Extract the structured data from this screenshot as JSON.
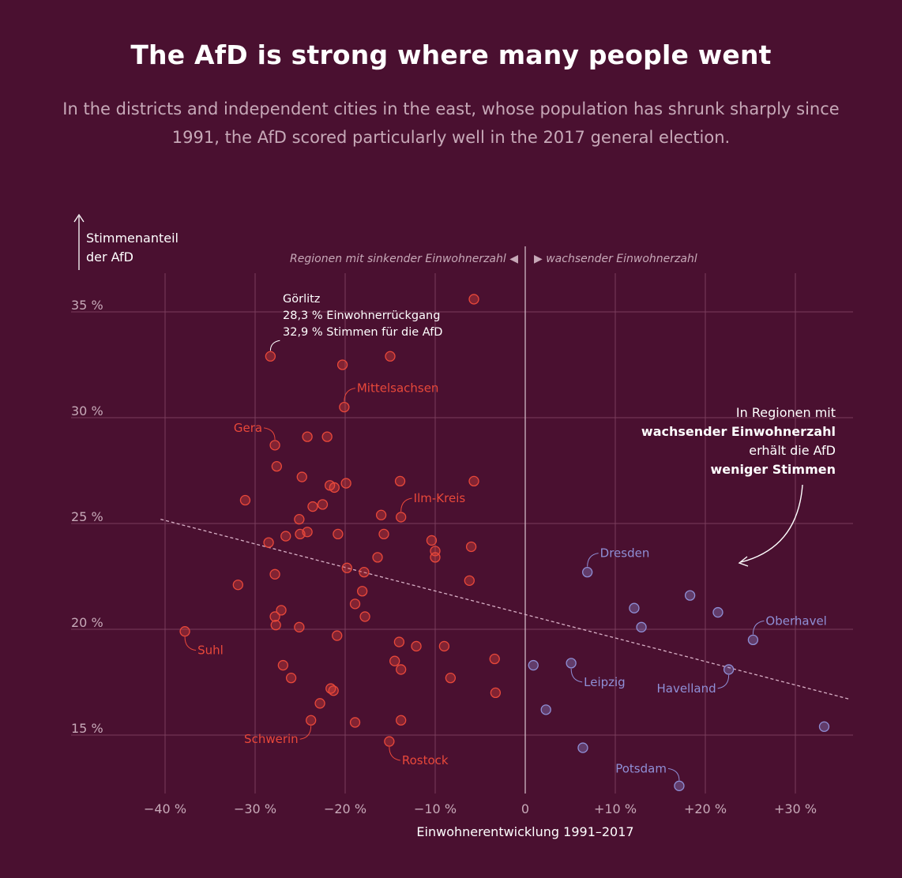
{
  "title": "The AfD is strong where many people went",
  "subtitle": "In the districts and independent cities in the east, whose population has shrunk sharply since 1991, the AfD scored particularly well in the 2017 general election.",
  "colors": {
    "background": "#4a1030",
    "shrinking": "#e8483a",
    "growing": "#8f8fd6",
    "grid": "#7a3d5c",
    "text": "#f0e6ea"
  },
  "chart_data": {
    "type": "scatter",
    "xlabel": "Einwohnerentwicklung 1991–2017",
    "ylabel_line1": "Stimmenanteil",
    "ylabel_line2": "der AfD",
    "xlim": [
      -42,
      36
    ],
    "ylim": [
      12,
      36.5
    ],
    "x_ticks": [
      -40,
      -30,
      -20,
      -10,
      0,
      10,
      20,
      30
    ],
    "x_tick_labels": [
      "−40 %",
      "−30 %",
      "−20 %",
      "−10 %",
      "0",
      "+10 %",
      "+20 %",
      "+30 %"
    ],
    "y_ticks": [
      15,
      20,
      25,
      30,
      35
    ],
    "y_tick_labels": [
      "15 %",
      "20 %",
      "25 %",
      "30 %",
      "35 %"
    ],
    "grid": true,
    "header_left": "Regionen mit sinkender Einwohnerzahl ◀",
    "header_right": "▶ wachsender Einwohnerzahl",
    "trendline": {
      "x": [
        -40.5,
        36
      ],
      "y": [
        25.2,
        16.7
      ]
    },
    "series": [
      {
        "group": "shrinking",
        "points": [
          [
            -5.7,
            35.6
          ],
          [
            -28.3,
            32.9
          ],
          [
            -15.0,
            32.9
          ],
          [
            -20.3,
            32.5
          ],
          [
            -20.1,
            30.5
          ],
          [
            -27.8,
            28.7
          ],
          [
            -24.2,
            29.1
          ],
          [
            -22.0,
            29.1
          ],
          [
            -27.6,
            27.7
          ],
          [
            -24.8,
            27.2
          ],
          [
            -21.7,
            26.8
          ],
          [
            -21.2,
            26.7
          ],
          [
            -19.9,
            26.9
          ],
          [
            -13.9,
            27.0
          ],
          [
            -5.7,
            27.0
          ],
          [
            -31.1,
            26.1
          ],
          [
            -23.6,
            25.8
          ],
          [
            -22.5,
            25.9
          ],
          [
            -16.0,
            25.4
          ],
          [
            -13.8,
            25.3
          ],
          [
            -25.1,
            25.2
          ],
          [
            -26.6,
            24.4
          ],
          [
            -25.0,
            24.5
          ],
          [
            -24.2,
            24.6
          ],
          [
            -20.8,
            24.5
          ],
          [
            -15.7,
            24.5
          ],
          [
            -10.4,
            24.2
          ],
          [
            -28.5,
            24.1
          ],
          [
            -10.0,
            23.7
          ],
          [
            -10.0,
            23.4
          ],
          [
            -16.4,
            23.4
          ],
          [
            -6.0,
            23.9
          ],
          [
            -19.8,
            22.9
          ],
          [
            -17.9,
            22.7
          ],
          [
            -27.8,
            22.6
          ],
          [
            -6.2,
            22.3
          ],
          [
            -31.9,
            22.1
          ],
          [
            -18.1,
            21.8
          ],
          [
            -18.9,
            21.2
          ],
          [
            -27.1,
            20.9
          ],
          [
            -27.8,
            20.6
          ],
          [
            -17.8,
            20.6
          ],
          [
            -27.7,
            20.2
          ],
          [
            -25.1,
            20.1
          ],
          [
            -37.8,
            19.9
          ],
          [
            -20.9,
            19.7
          ],
          [
            -14.0,
            19.4
          ],
          [
            -12.1,
            19.2
          ],
          [
            -9.0,
            19.2
          ],
          [
            -26.9,
            18.3
          ],
          [
            -14.5,
            18.5
          ],
          [
            -13.8,
            18.1
          ],
          [
            -3.4,
            18.6
          ],
          [
            -26.0,
            17.7
          ],
          [
            -8.3,
            17.7
          ],
          [
            -21.6,
            17.2
          ],
          [
            -21.3,
            17.1
          ],
          [
            -3.3,
            17.0
          ],
          [
            -22.8,
            16.5
          ],
          [
            -23.8,
            15.7
          ],
          [
            -18.9,
            15.6
          ],
          [
            -13.8,
            15.7
          ],
          [
            -15.1,
            14.7
          ]
        ]
      },
      {
        "group": "growing",
        "points": [
          [
            6.9,
            22.7
          ],
          [
            18.3,
            21.6
          ],
          [
            12.1,
            21.0
          ],
          [
            21.4,
            20.8
          ],
          [
            12.9,
            20.1
          ],
          [
            25.3,
            19.5
          ],
          [
            22.6,
            18.1
          ],
          [
            0.9,
            18.3
          ],
          [
            5.1,
            18.4
          ],
          [
            2.3,
            16.2
          ],
          [
            6.4,
            14.4
          ],
          [
            33.2,
            15.4
          ],
          [
            17.1,
            12.6
          ]
        ]
      }
    ],
    "labels": [
      {
        "name": "Suhl",
        "group": "shrinking",
        "x": -37.8,
        "y": 19.9,
        "side": "below-right"
      },
      {
        "name": "Gera",
        "group": "shrinking",
        "x": -27.8,
        "y": 28.7,
        "side": "above-left"
      },
      {
        "name": "Mittelsachsen",
        "group": "shrinking",
        "x": -20.1,
        "y": 30.5,
        "side": "above-right"
      },
      {
        "name": "Ilm-Kreis",
        "group": "shrinking",
        "x": -13.8,
        "y": 25.3,
        "side": "above-right"
      },
      {
        "name": "Schwerin",
        "group": "shrinking",
        "x": -23.8,
        "y": 15.7,
        "side": "below-left"
      },
      {
        "name": "Rostock",
        "group": "shrinking",
        "x": -15.1,
        "y": 14.7,
        "side": "below-right"
      },
      {
        "name": "Dresden",
        "group": "growing",
        "x": 6.9,
        "y": 22.7,
        "side": "above-right"
      },
      {
        "name": "Oberhavel",
        "group": "growing",
        "x": 25.3,
        "y": 19.5,
        "side": "above-right"
      },
      {
        "name": "Leipzig",
        "group": "growing",
        "x": 5.1,
        "y": 18.4,
        "side": "below-right"
      },
      {
        "name": "Havelland",
        "group": "growing",
        "x": 22.6,
        "y": 18.1,
        "side": "below-left"
      },
      {
        "name": "Potsdam",
        "group": "growing",
        "x": 17.1,
        "y": 12.6,
        "side": "above-left"
      }
    ],
    "callout_goerlitz": {
      "x": -28.3,
      "y": 32.9,
      "lines": [
        "Görlitz",
        "28,3 % Einwohnerrückgang",
        "32,9 % Stimmen für die AfD"
      ]
    },
    "annotation": {
      "line1": "In Regionen mit",
      "line2": "wachsender Einwohnerzahl",
      "line3": "erhält die AfD",
      "line4": "weniger Stimmen"
    }
  }
}
